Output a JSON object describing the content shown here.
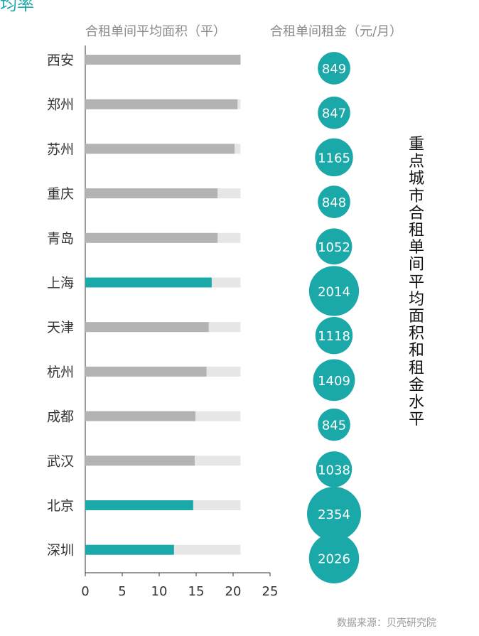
{
  "corner_text": "均率",
  "side_title": "重点城市合租单间平均面积和租金水平",
  "source": "数据来源：贝壳研究院",
  "colors": {
    "bar_gray": "#b3b3b3",
    "bar_track": "#e6e6e6",
    "accent": "#1aa9a8",
    "axis": "#333333",
    "label": "#333333"
  },
  "chart_data": {
    "type": "bar",
    "orientation": "horizontal",
    "area_header": "合租单间平均面积（平）",
    "rent_header": "合租单间租金（元/月）",
    "categories": [
      "西安",
      "郑州",
      "苏州",
      "重庆",
      "青岛",
      "上海",
      "天津",
      "杭州",
      "成都",
      "武汉",
      "北京",
      "深圳"
    ],
    "area_values": [
      21.0,
      20.6,
      20.2,
      17.9,
      17.9,
      17.1,
      16.7,
      16.4,
      14.9,
      14.8,
      14.6,
      12.0
    ],
    "track_max": 21.0,
    "rent_values": [
      849,
      847,
      1165,
      848,
      1052,
      2014,
      1118,
      1409,
      845,
      1038,
      2354,
      2026
    ],
    "highlight": [
      "上海",
      "北京",
      "深圳"
    ],
    "xlim": [
      0,
      25
    ],
    "xticks": [
      "0",
      "5",
      "10",
      "15",
      "20",
      "25"
    ]
  }
}
